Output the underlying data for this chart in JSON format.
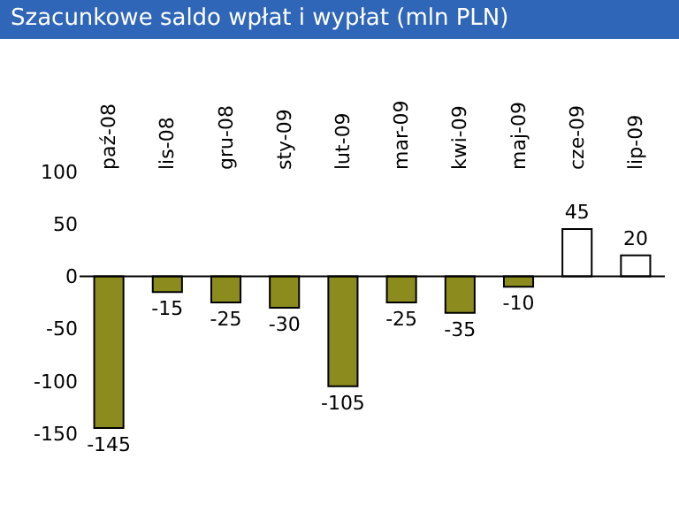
{
  "chart_data": {
    "type": "bar",
    "title": "Szacunkowe saldo wpłat i wypłat (mln PLN)",
    "categories": [
      "paź-08",
      "lis-08",
      "gru-08",
      "sty-09",
      "lut-09",
      "mar-09",
      "kwi-09",
      "maj-09",
      "cze-09",
      "lip-09"
    ],
    "values": [
      -145,
      -15,
      -25,
      -30,
      -105,
      -25,
      -35,
      -10,
      45,
      20
    ],
    "colors": [
      "#8c8c1e",
      "#8c8c1e",
      "#8c8c1e",
      "#8c8c1e",
      "#8c8c1e",
      "#8c8c1e",
      "#8c8c1e",
      "#8c8c1e",
      "#ffffff",
      "#ffffff"
    ],
    "ylim": [
      -150,
      100
    ],
    "yticks": [
      -150,
      -100,
      -50,
      0,
      50,
      100
    ],
    "data_labels": true
  }
}
